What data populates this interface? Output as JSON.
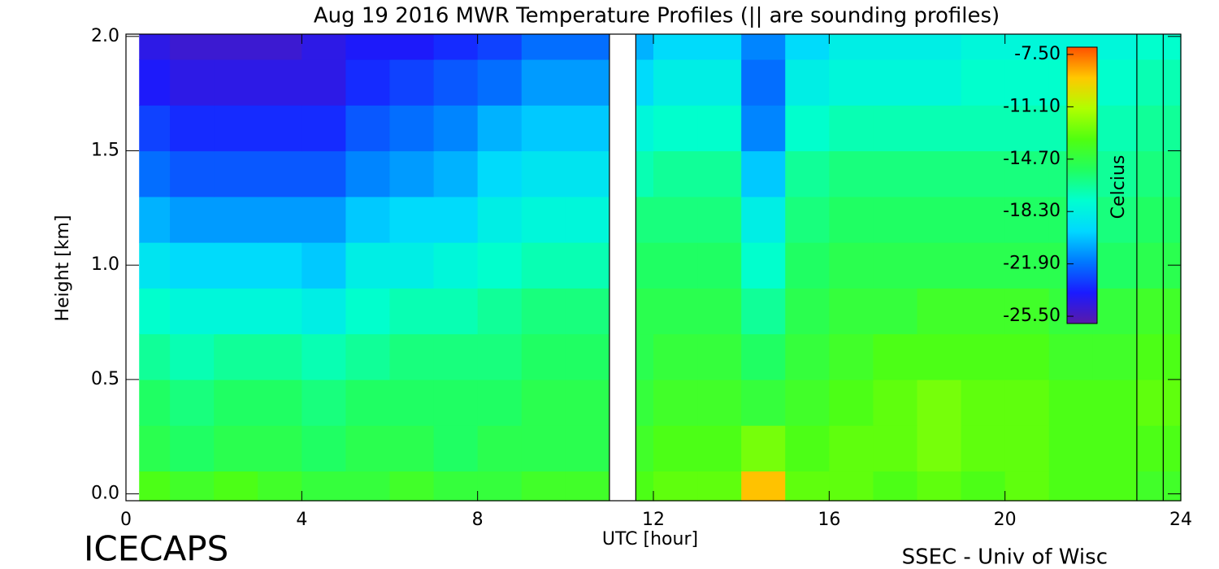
{
  "chart_data": {
    "type": "heatmap",
    "title": "Aug 19 2016 MWR Temperature Profiles (|| are sounding profiles)",
    "x_label": "UTC [hour]",
    "y_label": "Height [km]",
    "colorbar_label": "Celcius",
    "footer_left": "ICECAPS",
    "footer_right": "SSEC - Univ of Wisc",
    "xlim": [
      0,
      24
    ],
    "xticks": [
      0,
      4,
      8,
      12,
      16,
      20,
      24
    ],
    "ylim": [
      -0.03,
      2.01
    ],
    "yticks": [
      {
        "value": 0,
        "label": "0.0"
      },
      0.5,
      {
        "value": 1,
        "label": "1.0"
      },
      1.5,
      {
        "value": 2,
        "label": "2.0"
      }
    ],
    "x_edges": [
      0.3,
      1,
      2,
      3,
      4,
      5,
      6,
      7,
      8,
      9,
      10,
      11,
      11.6,
      12,
      13,
      14,
      15,
      16,
      17,
      18,
      19,
      20,
      21,
      22,
      23,
      24
    ],
    "y_edges": [
      -0.03,
      0.1,
      0.3,
      0.5,
      0.7,
      0.9,
      1.1,
      1.3,
      1.5,
      1.7,
      1.9,
      2.01
    ],
    "values": [
      [
        -13.5,
        -14,
        -13.5,
        -14,
        -14.5,
        -14.5,
        -14,
        -14.5,
        -14.5,
        -14,
        -14,
        null,
        -13.5,
        -13,
        -13,
        -9,
        -13,
        -13,
        -13.5,
        -13,
        -13.5,
        -13,
        -13.5,
        -13.5,
        -14
      ],
      [
        -15,
        -15.5,
        -15,
        -15,
        -15.5,
        -15,
        -15,
        -15.5,
        -15,
        -15,
        -15,
        null,
        -14,
        -13.5,
        -13.5,
        -12.5,
        -13.5,
        -13,
        -13,
        -12.5,
        -13,
        -13,
        -13.5,
        -13.5,
        -13.5
      ],
      [
        -15.5,
        -16,
        -15.5,
        -15.5,
        -16,
        -15.5,
        -15.5,
        -15.5,
        -15.5,
        -15,
        -15,
        null,
        -14.5,
        -14,
        -14,
        -14.5,
        -14,
        -13.5,
        -13,
        -12.5,
        -13,
        -13,
        -13.5,
        -13.5,
        -13
      ],
      [
        -16.5,
        -17,
        -16.5,
        -16.5,
        -17,
        -16.5,
        -16,
        -16,
        -16,
        -15.5,
        -15.5,
        null,
        -15,
        -14.5,
        -14.5,
        -15.5,
        -14.5,
        -14,
        -13.5,
        -13.5,
        -13.5,
        -13.5,
        -14,
        -14,
        -13.5
      ],
      [
        -17.5,
        -18,
        -18,
        -18,
        -18.5,
        -17.5,
        -17,
        -17,
        -16.5,
        -16,
        -16,
        null,
        -15,
        -15,
        -15,
        -16.5,
        -15,
        -14.5,
        -14.5,
        -14,
        -14,
        -14,
        -14.5,
        -14.5,
        -14
      ],
      [
        -19,
        -19.5,
        -19.5,
        -19.5,
        -20,
        -18.5,
        -18.5,
        -18,
        -17.5,
        -17,
        -17,
        null,
        -15.5,
        -15.5,
        -15.5,
        -17.5,
        -15.5,
        -15,
        -15,
        -15,
        -15,
        -15,
        -15,
        -15.5,
        -15
      ],
      [
        -20.5,
        -21,
        -21,
        -21,
        -21,
        -20,
        -19.5,
        -19.5,
        -18.5,
        -18,
        -18,
        null,
        -16,
        -16,
        -16,
        -18.5,
        -16,
        -15.5,
        -15.5,
        -15.5,
        -15.5,
        -15.5,
        -15.5,
        -16,
        -15.5
      ],
      [
        -22,
        -22.5,
        -22.5,
        -22.5,
        -22.5,
        -21.5,
        -21,
        -20.5,
        -19.5,
        -19,
        -19,
        null,
        -17,
        -16.5,
        -16.5,
        -20,
        -16.5,
        -16,
        -16,
        -16,
        -16,
        -16,
        -16,
        -16.5,
        -16
      ],
      [
        -23,
        -23.5,
        -23.5,
        -23.5,
        -23.5,
        -22.5,
        -22,
        -21.5,
        -20.5,
        -20,
        -20,
        null,
        -18,
        -17.5,
        -17.5,
        -21.5,
        -17.5,
        -17,
        -17,
        -17,
        -17,
        -17,
        -17,
        -17,
        -16.5
      ],
      [
        -24,
        -24.5,
        -24.5,
        -24.5,
        -24.5,
        -23.5,
        -23,
        -22.5,
        -22,
        -21,
        -21,
        null,
        -19.5,
        -18.5,
        -18.5,
        -22,
        -18.5,
        -18,
        -18,
        -18,
        -17.5,
        -17.5,
        -17.5,
        -17.5,
        -17
      ],
      [
        -24.5,
        -25,
        -25,
        -25,
        -24.5,
        -24,
        -24,
        -23.5,
        -23,
        -22,
        -22,
        null,
        -20.5,
        -19.5,
        -19.5,
        -21.5,
        -19.5,
        -18.5,
        -18.5,
        -18.5,
        -18,
        -18,
        -18,
        -18,
        -17.5
      ]
    ],
    "sounding_times": [
      11.0,
      11.6,
      23.0,
      23.6
    ],
    "clim": [
      -26,
      -7
    ],
    "colormap": [
      "#5a1aa8",
      "#1a1aff",
      "#0078ff",
      "#00d8ff",
      "#00ffd0",
      "#20ff60",
      "#50ff10",
      "#b0ff00",
      "#ffc800",
      "#ff5000"
    ],
    "colorbar_ticks": [
      {
        "value": -7.5,
        "label": "-7.50"
      },
      {
        "value": -11.1,
        "label": "-11.10"
      },
      {
        "value": -14.7,
        "label": "-14.70"
      },
      {
        "value": -18.3,
        "label": "-18.30"
      },
      {
        "value": -21.9,
        "label": "-21.90"
      },
      {
        "value": -25.5,
        "label": "-25.50"
      }
    ]
  }
}
